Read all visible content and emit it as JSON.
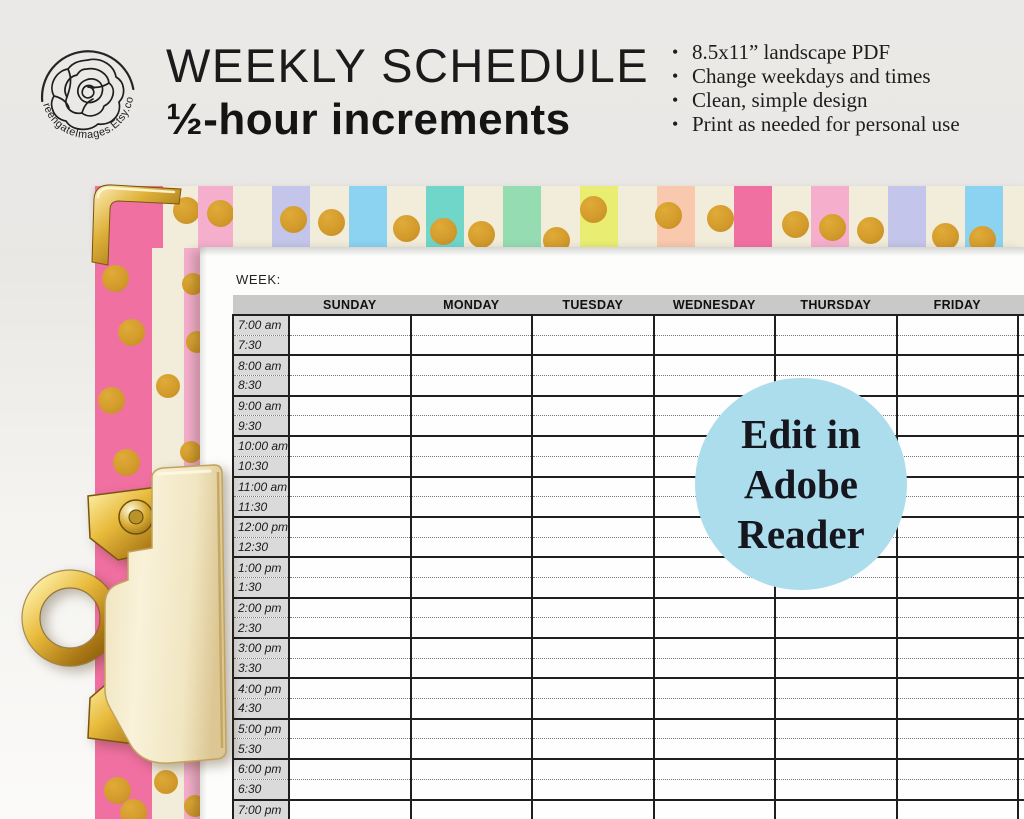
{
  "header": {
    "title": "WEEKLY SCHEDULE",
    "subtitle": "½-hour increments",
    "features": [
      "8.5x11” landscape PDF",
      "Change weekdays and times",
      "Clean, simple design",
      "Print as needed for personal use"
    ]
  },
  "logo": {
    "text": "GreengateImages.Etsy.com"
  },
  "sheet": {
    "week_label": "WEEK:",
    "days": [
      "SUNDAY",
      "MONDAY",
      "TUESDAY",
      "WEDNESDAY",
      "THURSDAY",
      "FRIDAY"
    ],
    "times": [
      "7:00 am",
      "7:30",
      "8:00 am",
      "8:30",
      "9:00 am",
      "9:30",
      "10:00 am",
      "10:30",
      "11:00 am",
      "11:30",
      "12:00 pm",
      "12:30",
      "1:00 pm",
      "1:30",
      "2:00 pm",
      "2:30",
      "3:00 pm",
      "3:30",
      "4:00 pm",
      "4:30",
      "5:00 pm",
      "5:30",
      "6:00 pm",
      "6:30",
      "7:00 pm"
    ]
  },
  "badge": {
    "lines": [
      "Edit in",
      "Adobe",
      "Reader"
    ],
    "bg": "#abdded",
    "text_color": "#16161e"
  },
  "palette": {
    "accent_gold": "#d29a2b",
    "header_gray": "#c9c9c9",
    "time_col_gray": "#dadada",
    "badge_blue": "#abdded",
    "stripe_colors": [
      "#f170a2",
      "#f2ecda",
      "#f5afcd",
      "#f2ecda",
      "#c4c5ea",
      "#f2ecda",
      "#8bd3f1",
      "#f2ecda",
      "#6fd6c9",
      "#f2ecda",
      "#95dcb3",
      "#f2ecda",
      "#e9ee72",
      "#f2ecda",
      "#f8c9ad",
      "#f2ecda"
    ]
  }
}
